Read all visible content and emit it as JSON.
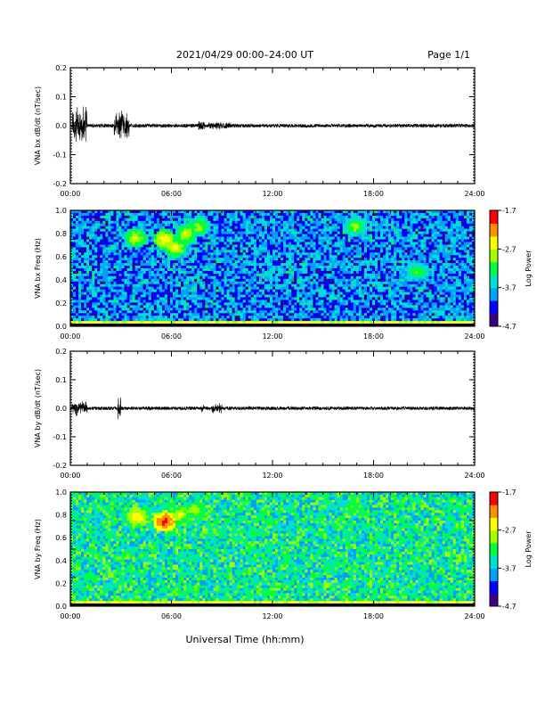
{
  "header": {
    "title": "2021/04/29  00:00–24:00 UT",
    "page": "Page 1/1"
  },
  "footer": {
    "xlabel": "Universal Time (hh:mm)"
  },
  "colormap": [
    "#3a0088",
    "#0000ff",
    "#00a0ff",
    "#00e0d0",
    "#00ff40",
    "#a0ff00",
    "#ffff00",
    "#ff9000",
    "#ff0000"
  ],
  "chart_data": [
    {
      "type": "line",
      "ylabel": "VNA bx dB/dt (nT/sec)",
      "xlim": [
        0,
        24
      ],
      "ylim": [
        -0.2,
        0.2
      ],
      "x_ticks": [
        "00:00",
        "06:00",
        "12:00",
        "18:00",
        "24:00"
      ],
      "y_ticks": [
        "0.2",
        "0.1",
        "0.0",
        "-0.1",
        "-0.2"
      ],
      "y_tick_values": [
        0.2,
        0.1,
        0.0,
        -0.1,
        -0.2
      ],
      "baseline": 0.0,
      "noise_amplitude": 0.006,
      "bursts": [
        {
          "t": [
            0.1,
            1.0
          ],
          "amplitude": 0.075
        },
        {
          "t": [
            2.6,
            3.5
          ],
          "amplitude": 0.06
        },
        {
          "t": [
            7.6,
            8.0
          ],
          "amplitude": 0.02
        },
        {
          "t": [
            8.2,
            9.6
          ],
          "amplitude": 0.015
        }
      ]
    },
    {
      "type": "heatmap",
      "ylabel": "VNA bx Freq (Hz)",
      "xlim": [
        0,
        24
      ],
      "ylim": [
        0,
        1.0
      ],
      "x_ticks": [
        "00:00",
        "06:00",
        "12:00",
        "18:00",
        "24:00"
      ],
      "y_ticks": [
        "1.0",
        "0.8",
        "0.6",
        "0.4",
        "0.2",
        "0.0"
      ],
      "y_tick_values": [
        1.0,
        0.8,
        0.6,
        0.4,
        0.2,
        0.0
      ],
      "colorbar": {
        "label": "Log Power",
        "ticks": [
          "-1.7",
          "-2.7",
          "-3.7",
          "-4.7"
        ],
        "tick_values": [
          -1.7,
          -2.7,
          -3.7,
          -4.7
        ],
        "range": [
          -4.7,
          -1.7
        ]
      },
      "background_level": -3.9,
      "low_freq_level": -2.6,
      "blobs": [
        {
          "t": 3.9,
          "f": 0.76,
          "level": -2.6
        },
        {
          "t": 5.6,
          "f": 0.75,
          "level": -2.4
        },
        {
          "t": 6.2,
          "f": 0.68,
          "level": -2.5
        },
        {
          "t": 6.9,
          "f": 0.8,
          "level": -2.6
        },
        {
          "t": 7.6,
          "f": 0.86,
          "level": -2.7
        },
        {
          "t": 16.9,
          "f": 0.86,
          "level": -2.8
        },
        {
          "t": 20.6,
          "f": 0.47,
          "level": -2.9
        }
      ]
    },
    {
      "type": "line",
      "ylabel": "VNA by dB/dt (nT/sec)",
      "xlim": [
        0,
        24
      ],
      "ylim": [
        -0.2,
        0.2
      ],
      "x_ticks": [
        "00:00",
        "06:00",
        "12:00",
        "18:00",
        "24:00"
      ],
      "y_ticks": [
        "0.2",
        "0.1",
        "0.0",
        "-0.1",
        "-0.2"
      ],
      "y_tick_values": [
        0.2,
        0.1,
        0.0,
        -0.1,
        -0.2
      ],
      "baseline": 0.0,
      "noise_amplitude": 0.006,
      "bursts": [
        {
          "t": [
            0.1,
            1.0
          ],
          "amplitude": 0.03
        },
        {
          "t": [
            2.8,
            3.0
          ],
          "amplitude": 0.045
        },
        {
          "t": [
            7.8,
            8.0
          ],
          "amplitude": 0.02
        },
        {
          "t": [
            8.4,
            9.0
          ],
          "amplitude": 0.02
        }
      ]
    },
    {
      "type": "heatmap",
      "ylabel": "VNA by Freq (Hz)",
      "xlim": [
        0,
        24
      ],
      "ylim": [
        0,
        1.0
      ],
      "x_ticks": [
        "00:00",
        "06:00",
        "12:00",
        "18:00",
        "24:00"
      ],
      "y_ticks": [
        "1.0",
        "0.8",
        "0.6",
        "0.4",
        "0.2",
        "0.0"
      ],
      "y_tick_values": [
        1.0,
        0.8,
        0.6,
        0.4,
        0.2,
        0.0
      ],
      "colorbar": {
        "label": "Log Power",
        "ticks": [
          "-1.7",
          "-2.7",
          "-3.7",
          "-4.7"
        ],
        "tick_values": [
          -1.7,
          -2.7,
          -3.7,
          -4.7
        ],
        "range": [
          -4.7,
          -1.7
        ]
      },
      "background_level": -3.4,
      "low_freq_level": -2.6,
      "blobs": [
        {
          "t": 4.0,
          "f": 0.78,
          "level": -2.3
        },
        {
          "t": 5.6,
          "f": 0.74,
          "level": -1.8
        },
        {
          "t": 6.5,
          "f": 0.8,
          "level": -2.5
        },
        {
          "t": 7.5,
          "f": 0.83,
          "level": -2.7
        },
        {
          "t": 16.8,
          "f": 0.86,
          "level": -2.9
        }
      ]
    }
  ]
}
